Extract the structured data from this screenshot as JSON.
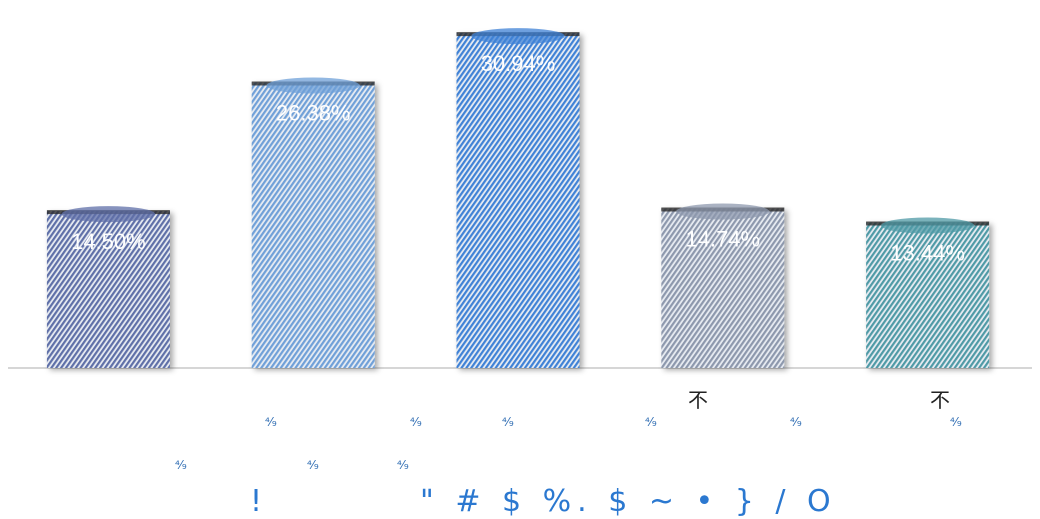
{
  "chart_data": {
    "type": "bar",
    "categories": [
      "",
      "",
      "",
      "不",
      "不"
    ],
    "values": [
      14.5,
      26.38,
      30.94,
      14.74,
      13.44
    ],
    "value_labels": [
      "14.50%",
      "26.38%",
      "30.94%",
      "14.74%",
      "13.44%"
    ],
    "ylim": [
      0,
      34
    ],
    "grid": false,
    "legend": "none",
    "colors": [
      "#5f6fa8",
      "#6fa0d8",
      "#3f82d6",
      "#8d98ad",
      "#4f9aa6"
    ]
  },
  "garbled": {
    "tick_marks": [
      "⁴⁄₉",
      "⁴⁄₉",
      "⁴⁄₉",
      "⁴⁄₉",
      "⁴⁄₉",
      "⁴⁄₉",
      "⁴⁄₉",
      "⁴⁄₉",
      "⁴⁄₉"
    ],
    "footer_left": "!",
    "footer_right": "\" # $ %.  $ ~ • } / O"
  }
}
